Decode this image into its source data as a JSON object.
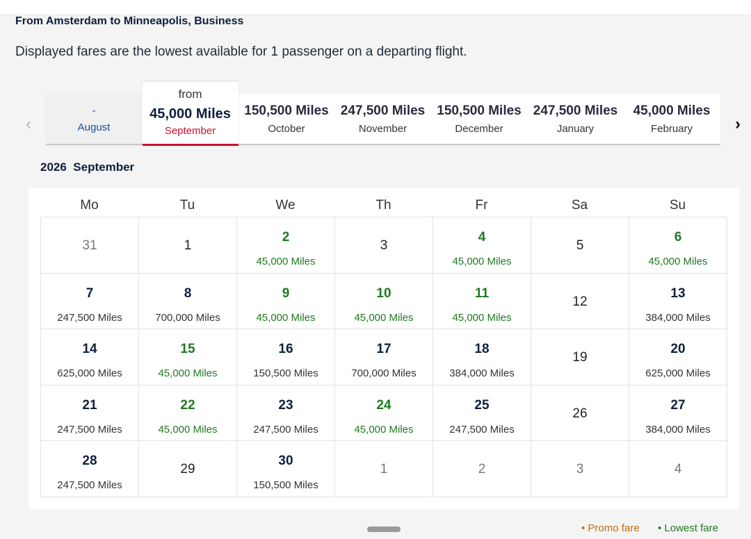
{
  "header": {
    "route": "From Amsterdam to Minneapolis, Business",
    "info": "Displayed fares are the lowest available for 1 passenger on a departing flight."
  },
  "nav": {
    "prev_glyph": "‹",
    "next_glyph": "›"
  },
  "months": [
    {
      "price": "-",
      "name": "August",
      "state": "empty"
    },
    {
      "from": "from",
      "price": "45,000 Miles",
      "name": "September",
      "state": "active"
    },
    {
      "price": "150,500 Miles",
      "name": "October"
    },
    {
      "price": "247,500 Miles",
      "name": "November"
    },
    {
      "price": "150,500 Miles",
      "name": "December"
    },
    {
      "price": "247,500 Miles",
      "name": "January"
    },
    {
      "price": "45,000 Miles",
      "name": "February"
    }
  ],
  "calendar": {
    "year": "2026",
    "month": "September",
    "weekdays": [
      "Mo",
      "Tu",
      "We",
      "Th",
      "Fr",
      "Sa",
      "Su"
    ],
    "weeks": [
      [
        {
          "day": "31",
          "state": "out"
        },
        {
          "day": "1",
          "state": "plain"
        },
        {
          "day": "2",
          "miles": "45,000 Miles",
          "state": "green"
        },
        {
          "day": "3",
          "state": "plain"
        },
        {
          "day": "4",
          "miles": "45,000 Miles",
          "state": "green"
        },
        {
          "day": "5",
          "state": "plain"
        },
        {
          "day": "6",
          "miles": "45,000 Miles",
          "state": "green"
        }
      ],
      [
        {
          "day": "7",
          "miles": "247,500 Miles",
          "state": "has"
        },
        {
          "day": "8",
          "miles": "700,000 Miles",
          "state": "has"
        },
        {
          "day": "9",
          "miles": "45,000 Miles",
          "state": "green"
        },
        {
          "day": "10",
          "miles": "45,000 Miles",
          "state": "green"
        },
        {
          "day": "11",
          "miles": "45,000 Miles",
          "state": "green"
        },
        {
          "day": "12",
          "state": "plain"
        },
        {
          "day": "13",
          "miles": "384,000 Miles",
          "state": "has"
        }
      ],
      [
        {
          "day": "14",
          "miles": "625,000 Miles",
          "state": "has"
        },
        {
          "day": "15",
          "miles": "45,000 Miles",
          "state": "green"
        },
        {
          "day": "16",
          "miles": "150,500 Miles",
          "state": "has"
        },
        {
          "day": "17",
          "miles": "700,000 Miles",
          "state": "has"
        },
        {
          "day": "18",
          "miles": "384,000 Miles",
          "state": "has"
        },
        {
          "day": "19",
          "state": "plain"
        },
        {
          "day": "20",
          "miles": "625,000 Miles",
          "state": "has"
        }
      ],
      [
        {
          "day": "21",
          "miles": "247,500 Miles",
          "state": "has"
        },
        {
          "day": "22",
          "miles": "45,000 Miles",
          "state": "green"
        },
        {
          "day": "23",
          "miles": "247,500 Miles",
          "state": "has"
        },
        {
          "day": "24",
          "miles": "45,000 Miles",
          "state": "green"
        },
        {
          "day": "25",
          "miles": "247,500 Miles",
          "state": "has"
        },
        {
          "day": "26",
          "state": "plain"
        },
        {
          "day": "27",
          "miles": "384,000 Miles",
          "state": "has"
        }
      ],
      [
        {
          "day": "28",
          "miles": "247,500 Miles",
          "state": "has"
        },
        {
          "day": "29",
          "state": "plain"
        },
        {
          "day": "30",
          "miles": "150,500 Miles",
          "state": "has"
        },
        {
          "day": "1",
          "state": "out"
        },
        {
          "day": "2",
          "state": "out"
        },
        {
          "day": "3",
          "state": "out"
        },
        {
          "day": "4",
          "state": "out"
        }
      ]
    ]
  },
  "legend": {
    "promo": "• Promo fare",
    "lowest": "• Lowest fare"
  },
  "colors": {
    "promo": "#c26a12",
    "lowest": "#1e7a20",
    "accent": "#c8102e",
    "navy": "#0e1f3d"
  }
}
